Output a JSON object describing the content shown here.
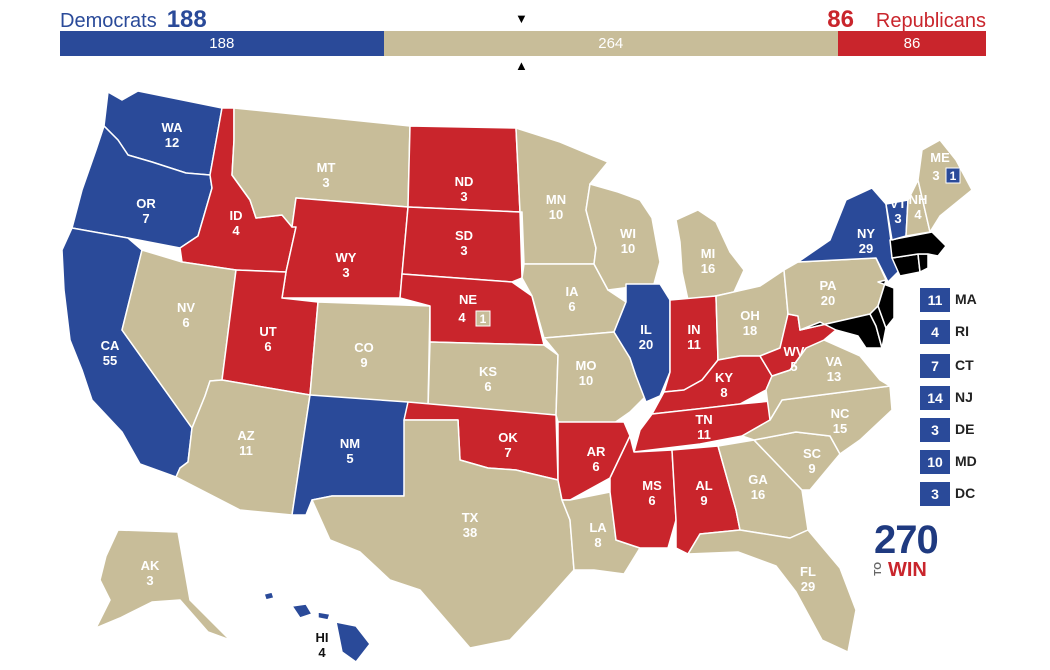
{
  "header": {
    "dem_label": "Democrats",
    "dem_total": "188",
    "rep_label": "Republicans",
    "rep_total": "86"
  },
  "bar": {
    "dem_value": 188,
    "tossup_value": 264,
    "rep_value": 86,
    "dem_text": "188",
    "tossup_text": "264",
    "rep_text": "86",
    "marker_down": "▼",
    "marker_up": "▲"
  },
  "colors": {
    "dem": "#2a4a99",
    "rep": "#c9252c",
    "tossup": "#c8bd99"
  },
  "states": [
    {
      "abbr": "WA",
      "ev": "12",
      "party": "dem"
    },
    {
      "abbr": "OR",
      "ev": "7",
      "party": "dem"
    },
    {
      "abbr": "CA",
      "ev": "55",
      "party": "dem"
    },
    {
      "abbr": "ID",
      "ev": "4",
      "party": "rep"
    },
    {
      "abbr": "NV",
      "ev": "6",
      "party": "tossup"
    },
    {
      "abbr": "MT",
      "ev": "3",
      "party": "tossup"
    },
    {
      "abbr": "WY",
      "ev": "3",
      "party": "rep"
    },
    {
      "abbr": "UT",
      "ev": "6",
      "party": "rep"
    },
    {
      "abbr": "AZ",
      "ev": "11",
      "party": "tossup"
    },
    {
      "abbr": "CO",
      "ev": "9",
      "party": "tossup"
    },
    {
      "abbr": "NM",
      "ev": "5",
      "party": "dem"
    },
    {
      "abbr": "ND",
      "ev": "3",
      "party": "rep"
    },
    {
      "abbr": "SD",
      "ev": "3",
      "party": "rep"
    },
    {
      "abbr": "NE",
      "ev": "4",
      "party": "rep"
    },
    {
      "abbr": "KS",
      "ev": "6",
      "party": "tossup"
    },
    {
      "abbr": "OK",
      "ev": "7",
      "party": "rep"
    },
    {
      "abbr": "TX",
      "ev": "38",
      "party": "tossup"
    },
    {
      "abbr": "MN",
      "ev": "10",
      "party": "tossup"
    },
    {
      "abbr": "IA",
      "ev": "6",
      "party": "tossup"
    },
    {
      "abbr": "MO",
      "ev": "10",
      "party": "tossup"
    },
    {
      "abbr": "AR",
      "ev": "6",
      "party": "rep"
    },
    {
      "abbr": "LA",
      "ev": "8",
      "party": "tossup"
    },
    {
      "abbr": "WI",
      "ev": "10",
      "party": "tossup"
    },
    {
      "abbr": "IL",
      "ev": "20",
      "party": "dem"
    },
    {
      "abbr": "MI",
      "ev": "16",
      "party": "tossup"
    },
    {
      "abbr": "IN",
      "ev": "11",
      "party": "rep"
    },
    {
      "abbr": "OH",
      "ev": "18",
      "party": "tossup"
    },
    {
      "abbr": "KY",
      "ev": "8",
      "party": "rep"
    },
    {
      "abbr": "TN",
      "ev": "11",
      "party": "rep"
    },
    {
      "abbr": "MS",
      "ev": "6",
      "party": "rep"
    },
    {
      "abbr": "AL",
      "ev": "9",
      "party": "rep"
    },
    {
      "abbr": "GA",
      "ev": "16",
      "party": "tossup"
    },
    {
      "abbr": "FL",
      "ev": "29",
      "party": "tossup"
    },
    {
      "abbr": "SC",
      "ev": "9",
      "party": "tossup"
    },
    {
      "abbr": "NC",
      "ev": "15",
      "party": "tossup"
    },
    {
      "abbr": "VA",
      "ev": "13",
      "party": "tossup"
    },
    {
      "abbr": "WV",
      "ev": "5",
      "party": "rep"
    },
    {
      "abbr": "PA",
      "ev": "20",
      "party": "tossup"
    },
    {
      "abbr": "NY",
      "ev": "29",
      "party": "dem"
    },
    {
      "abbr": "VT",
      "ev": "3",
      "party": "dem"
    },
    {
      "abbr": "NH",
      "ev": "4",
      "party": "tossup"
    },
    {
      "abbr": "ME",
      "ev": "3",
      "party": "tossup"
    },
    {
      "abbr": "AK",
      "ev": "3",
      "party": "tossup"
    },
    {
      "abbr": "HI",
      "ev": "4",
      "party": "dem"
    }
  ],
  "district_boxes": {
    "ne_district": "1",
    "me_district": "1"
  },
  "small_states": [
    {
      "ev": "11",
      "abbr": "MA"
    },
    {
      "ev": "4",
      "abbr": "RI"
    },
    {
      "ev": "7",
      "abbr": "CT"
    },
    {
      "ev": "14",
      "abbr": "NJ"
    },
    {
      "ev": "3",
      "abbr": "DE"
    },
    {
      "ev": "10",
      "abbr": "MD"
    },
    {
      "ev": "3",
      "abbr": "DC"
    }
  ],
  "logo": {
    "number": "270",
    "to": "TO",
    "win": "WIN"
  }
}
